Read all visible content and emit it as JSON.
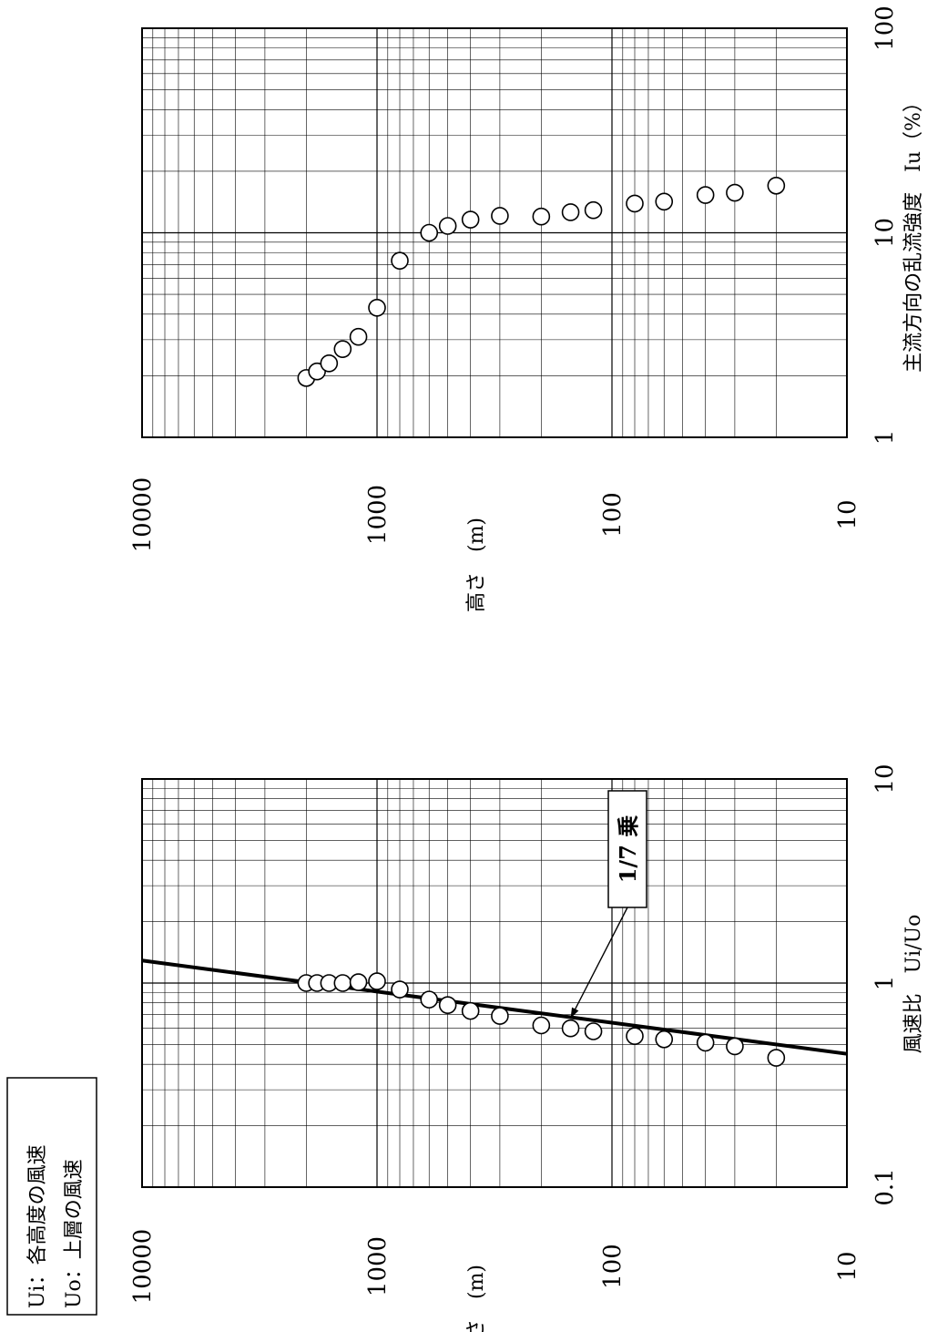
{
  "legend_box": {
    "line1": "Ui：各高度の風速",
    "line2": "Uo：上層の風速"
  },
  "chart_data": [
    {
      "type": "scatter",
      "title": "",
      "xlabel": "風速比　Ui/Uo",
      "ylabel": "高さ　(m)",
      "xscale": "log",
      "yscale": "log",
      "xlim": [
        0.1,
        10
      ],
      "ylim": [
        10,
        10000
      ],
      "x_ticks": [
        "0.1",
        "1",
        "10"
      ],
      "y_ticks": [
        "10",
        "100",
        "1000",
        "10000"
      ],
      "grid": true,
      "series": [
        {
          "x": [
            1.0,
            1.0,
            1.0,
            1.0,
            1.01,
            1.02,
            0.93,
            0.83,
            0.78,
            0.73,
            0.69,
            0.62,
            0.6,
            0.58,
            0.55,
            0.53,
            0.51,
            0.49,
            0.43
          ],
          "y": [
            2000,
            1800,
            1600,
            1400,
            1200,
            1000,
            800,
            600,
            500,
            400,
            300,
            200,
            150,
            120,
            80,
            60,
            40,
            30,
            20
          ]
        }
      ],
      "fit_line": {
        "x": [
          1.29,
          0.45
        ],
        "y": [
          10000,
          10
        ]
      },
      "annotation": {
        "text": "1/7 乗",
        "arrow_to": [
          0.62,
          150
        ]
      }
    },
    {
      "type": "scatter",
      "title": "",
      "xlabel": "主流方向の乱流強度　Iu（%）",
      "ylabel": "高さ　(m)",
      "xscale": "log",
      "yscale": "log",
      "xlim": [
        1,
        100
      ],
      "ylim": [
        10,
        10000
      ],
      "x_ticks": [
        "1",
        "10",
        "100"
      ],
      "y_ticks": [
        "10",
        "100",
        "1000",
        "10000"
      ],
      "grid": true,
      "series": [
        {
          "x": [
            1.95,
            2.1,
            2.3,
            2.7,
            3.1,
            4.3,
            7.3,
            10.0,
            10.8,
            11.6,
            12.1,
            12.0,
            12.6,
            12.9,
            13.9,
            14.2,
            15.3,
            15.7,
            17.0
          ],
          "y": [
            2000,
            1800,
            1600,
            1400,
            1200,
            1000,
            800,
            600,
            500,
            400,
            300,
            200,
            150,
            120,
            80,
            60,
            40,
            30,
            20
          ]
        }
      ]
    }
  ]
}
